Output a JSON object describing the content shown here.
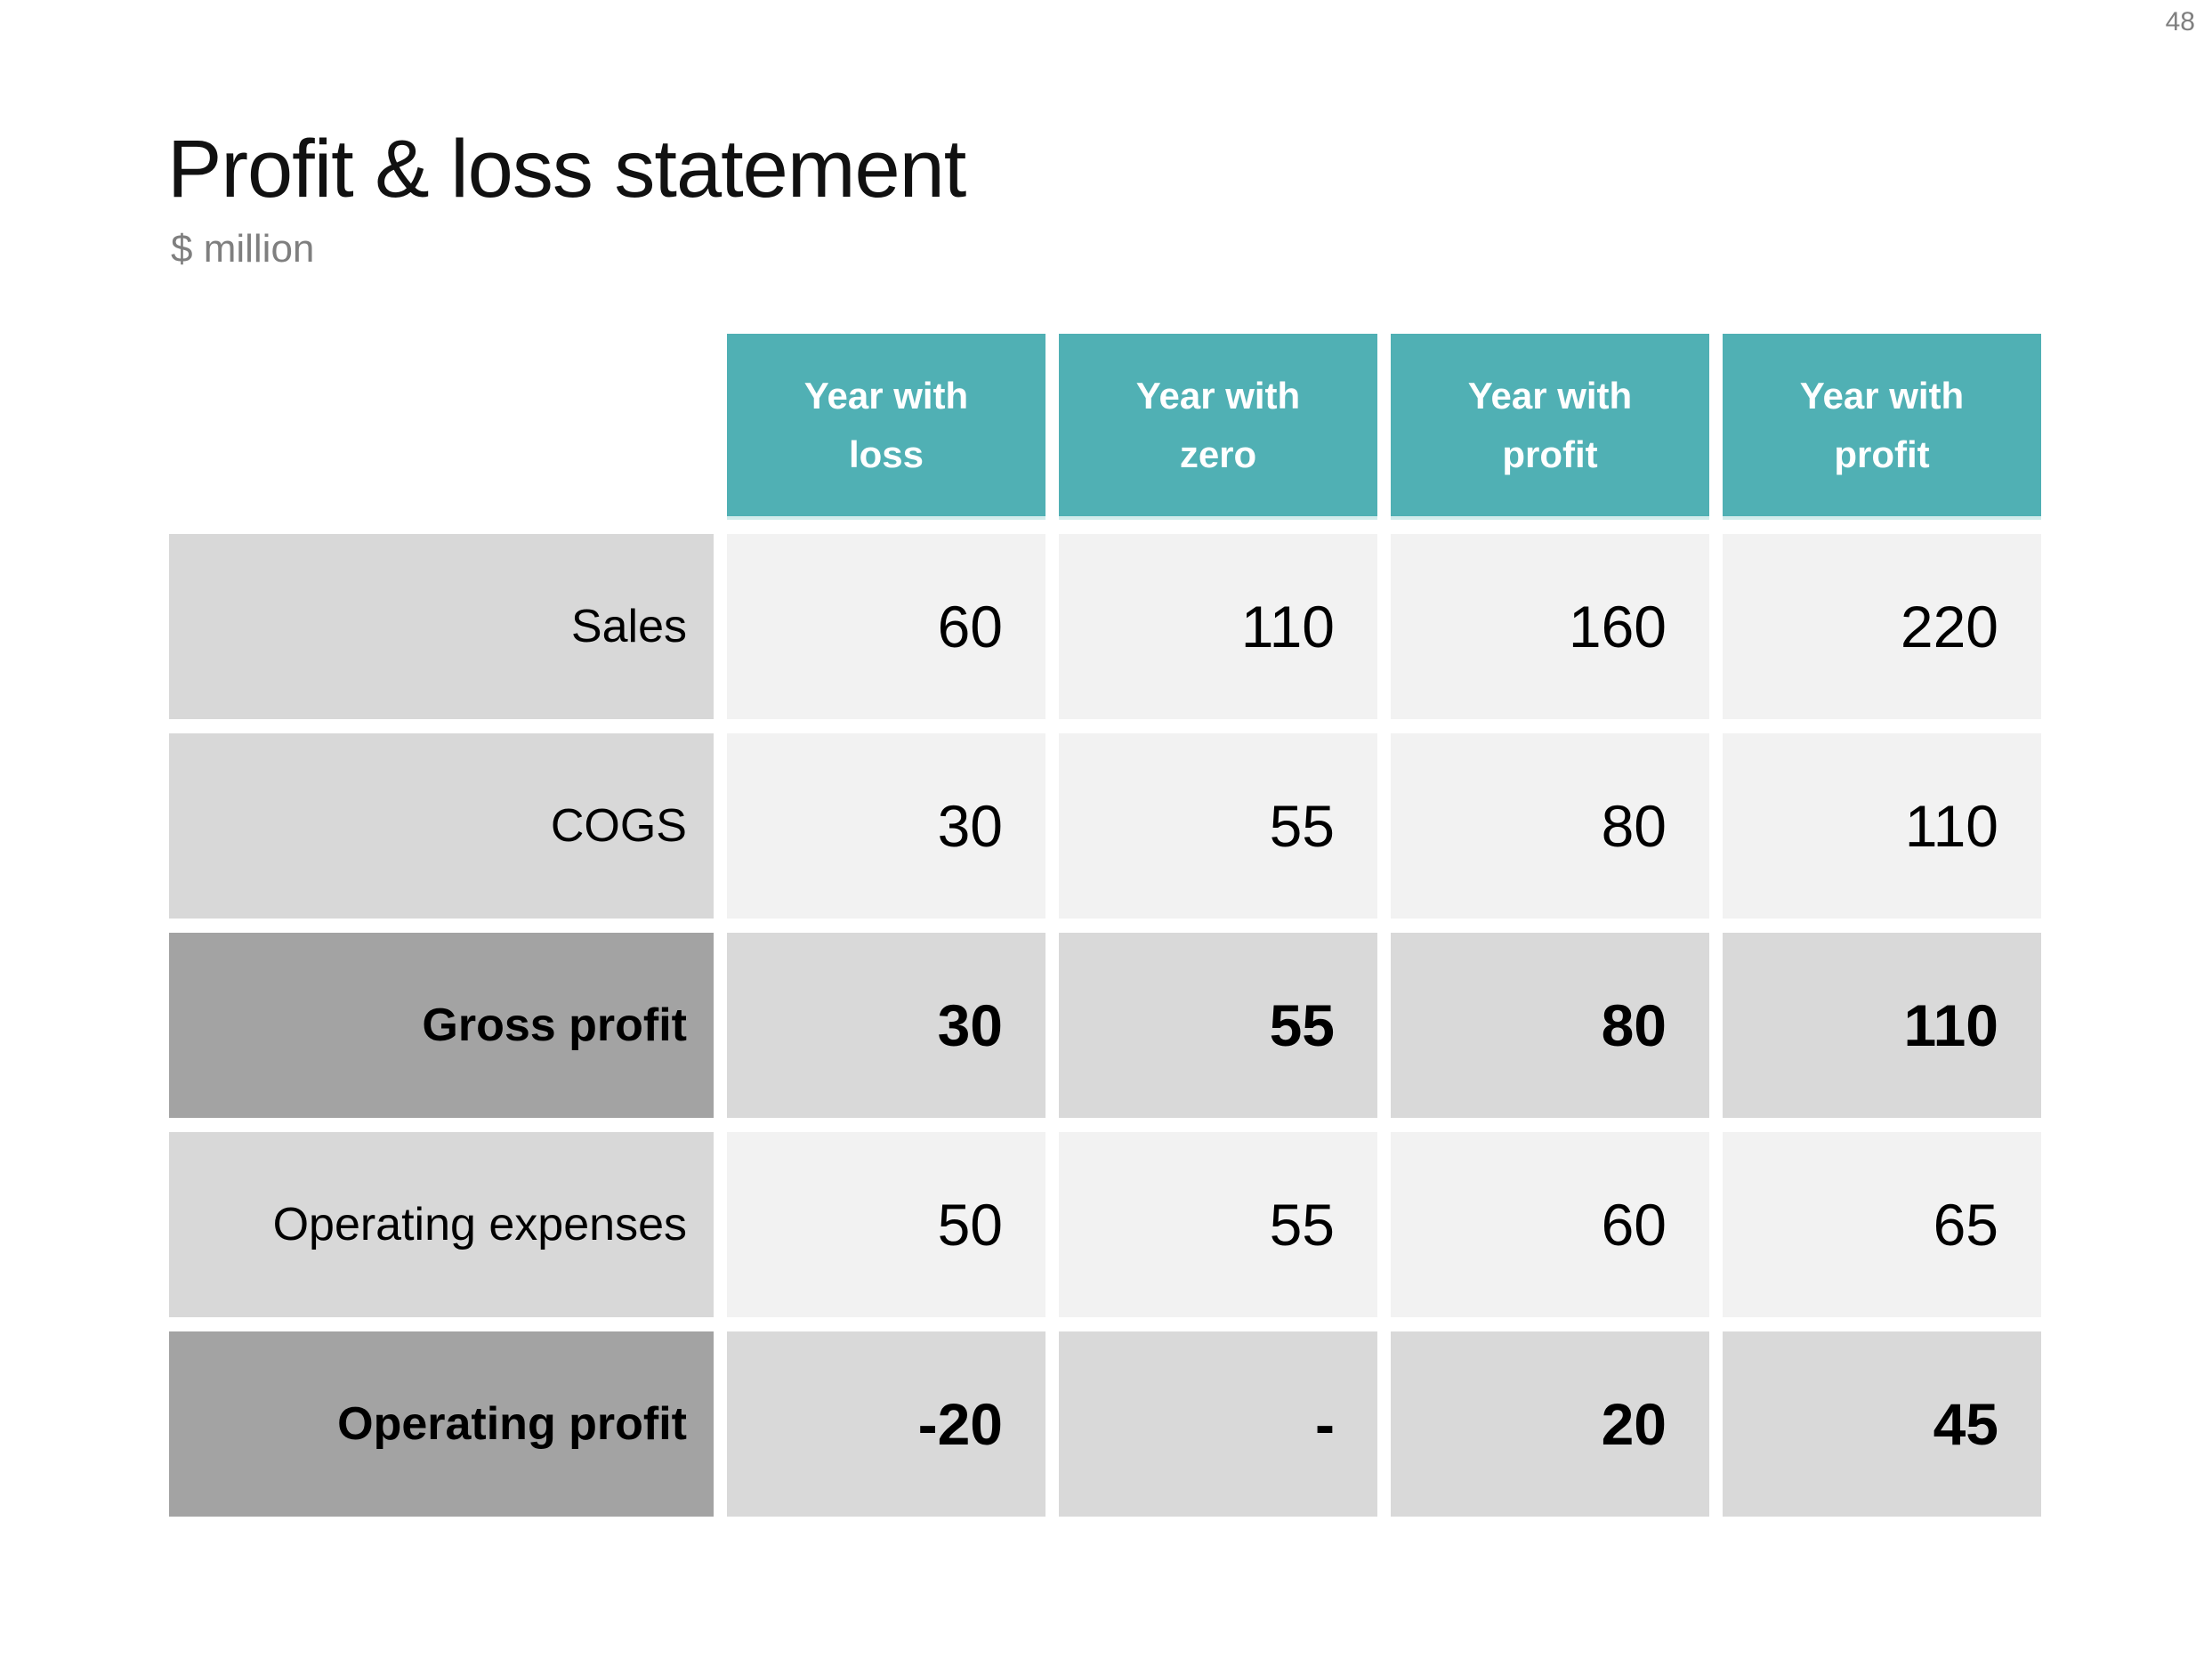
{
  "page": {
    "number": "48"
  },
  "header": {
    "title": "Profit & loss statement",
    "subtitle": "$ million"
  },
  "table": {
    "columns": [
      {
        "label": "Year with\nloss"
      },
      {
        "label": "Year with\nzero"
      },
      {
        "label": "Year with\nprofit"
      },
      {
        "label": "Year with\nprofit"
      }
    ],
    "rows": [
      {
        "label": "Sales",
        "values": [
          "60",
          "110",
          "160",
          "220"
        ],
        "emphasis": false
      },
      {
        "label": "COGS",
        "values": [
          "30",
          "55",
          "80",
          "110"
        ],
        "emphasis": false
      },
      {
        "label": "Gross profit",
        "values": [
          "30",
          "55",
          "80",
          "110"
        ],
        "emphasis": true
      },
      {
        "label": "Operating expenses",
        "values": [
          "50",
          "55",
          "60",
          "65"
        ],
        "emphasis": false
      },
      {
        "label": "Operating profit",
        "values": [
          "-20",
          "-",
          "20",
          "45"
        ],
        "emphasis": true
      }
    ]
  },
  "colors": {
    "teal": "#50b0b4",
    "label_light": "#d8d8d8",
    "cell_light": "#f2f2f2",
    "label_dark": "#a3a3a3",
    "cell_dark": "#d9d9d9",
    "text_gray": "#7f7f7f"
  }
}
